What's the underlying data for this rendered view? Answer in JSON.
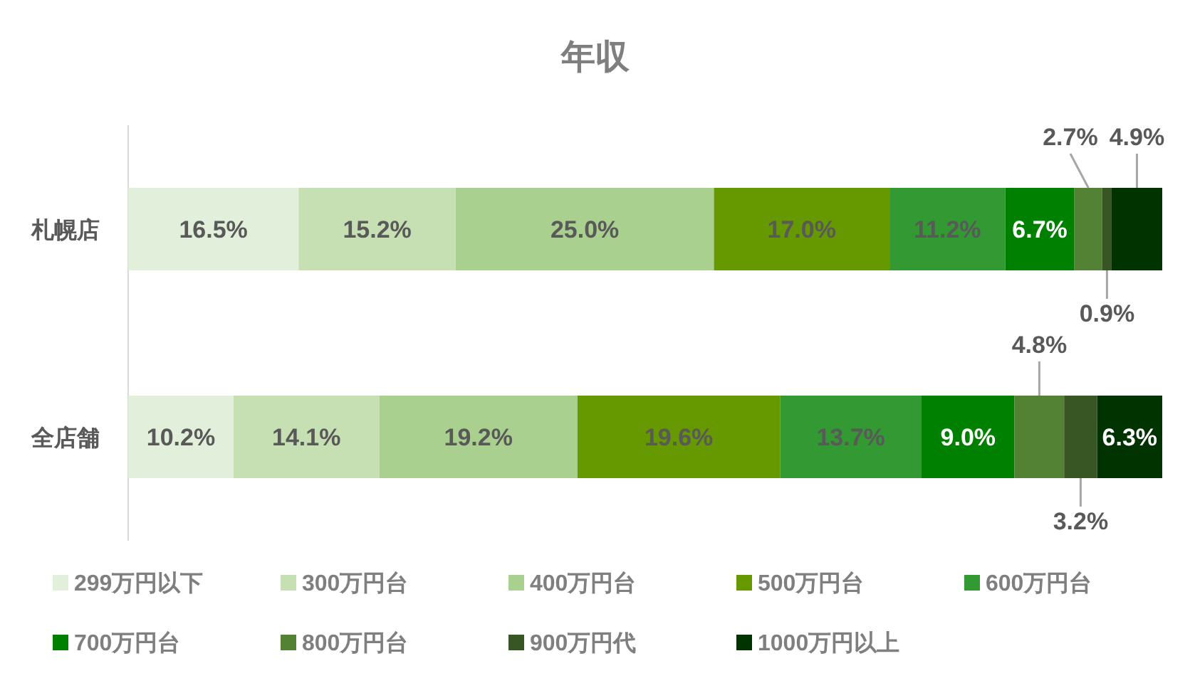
{
  "chart_data": {
    "type": "bar",
    "orientation": "horizontal",
    "stacked": true,
    "title": "年収",
    "legend": "bottom",
    "categories": [
      "札幌店",
      "全店舗"
    ],
    "series": [
      {
        "name": "299万円以下",
        "color": "#e2efda",
        "values": [
          16.5,
          10.2
        ],
        "value_labels": [
          "16.5%",
          "10.2%"
        ]
      },
      {
        "name": "300万円台",
        "color": "#c6e0b4",
        "values": [
          15.2,
          14.1
        ],
        "value_labels": [
          "15.2%",
          "14.1%"
        ]
      },
      {
        "name": "400万円台",
        "color": "#a9d08e",
        "values": [
          25.0,
          19.2
        ],
        "value_labels": [
          "25.0%",
          "19.2%"
        ]
      },
      {
        "name": "500万円台",
        "color": "#669900",
        "values": [
          17.0,
          19.6
        ],
        "value_labels": [
          "17.0%",
          "19.6%"
        ]
      },
      {
        "name": "600万円台",
        "color": "#339933",
        "values": [
          11.2,
          13.7
        ],
        "value_labels": [
          "11.2%",
          "13.7%"
        ]
      },
      {
        "name": "700万円台",
        "color": "#008000",
        "values": [
          6.7,
          9.0
        ],
        "value_labels": [
          "6.7%",
          "9.0%"
        ]
      },
      {
        "name": "800万円台",
        "color": "#548235",
        "values": [
          2.7,
          4.8
        ],
        "value_labels": [
          "2.7%",
          "4.8%"
        ]
      },
      {
        "name": "900万円代",
        "color": "#375623",
        "values": [
          0.9,
          3.2
        ],
        "value_labels": [
          "0.9%",
          "3.2%"
        ]
      },
      {
        "name": "1000万円以上",
        "color": "#003300",
        "values": [
          4.9,
          6.3
        ],
        "value_labels": [
          "4.9%",
          "6.3%"
        ]
      }
    ]
  }
}
